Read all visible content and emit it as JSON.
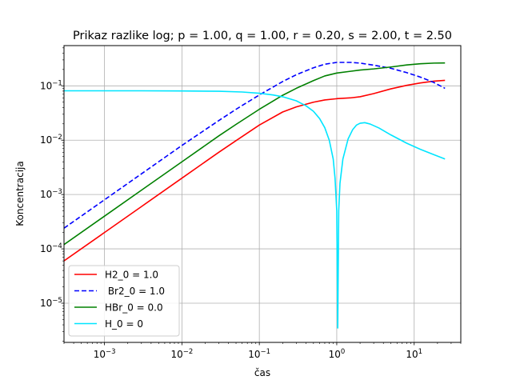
{
  "chart_data": {
    "type": "line",
    "title": "Prikaz razlike log; p = 1.00, q = 1.00, r = 0.20, s = 2.00, t = 2.50",
    "xlabel": "čas",
    "ylabel": "Koncentracija",
    "xscale": "log",
    "yscale": "log",
    "xlim": [
      0.0003,
      40
    ],
    "ylim": [
      1.9e-06,
      0.55
    ],
    "grid": true,
    "legend_position": "lower-left",
    "x_ticks": [
      {
        "value": 0.001,
        "base": "10",
        "exp": "−3"
      },
      {
        "value": 0.01,
        "base": "10",
        "exp": "−2"
      },
      {
        "value": 0.1,
        "base": "10",
        "exp": "−1"
      },
      {
        "value": 1,
        "base": "10",
        "exp": "0"
      },
      {
        "value": 10,
        "base": "10",
        "exp": "1"
      }
    ],
    "y_ticks": [
      {
        "value": 1e-05,
        "base": "10",
        "exp": "−5"
      },
      {
        "value": 0.0001,
        "base": "10",
        "exp": "−4"
      },
      {
        "value": 0.001,
        "base": "10",
        "exp": "−3"
      },
      {
        "value": 0.01,
        "base": "10",
        "exp": "−2"
      },
      {
        "value": 0.1,
        "base": "10",
        "exp": "−1"
      }
    ],
    "series": [
      {
        "name": "H2_0 = 1.0",
        "color": "#ff0000",
        "dash": "solid",
        "points": [
          [
            0.0003,
            6e-05
          ],
          [
            0.001,
            0.0002
          ],
          [
            0.003,
            0.0006
          ],
          [
            0.01,
            0.002
          ],
          [
            0.03,
            0.006
          ],
          [
            0.05,
            0.0098
          ],
          [
            0.1,
            0.019
          ],
          [
            0.2,
            0.033
          ],
          [
            0.3,
            0.041
          ],
          [
            0.5,
            0.05
          ],
          [
            0.7,
            0.055
          ],
          [
            1,
            0.058
          ],
          [
            1.5,
            0.06
          ],
          [
            2,
            0.063
          ],
          [
            3,
            0.072
          ],
          [
            5,
            0.088
          ],
          [
            8,
            0.102
          ],
          [
            12,
            0.113
          ],
          [
            18,
            0.122
          ],
          [
            25,
            0.126
          ]
        ]
      },
      {
        "name": " Br2_0 = 1.0",
        "color": "#0000ff",
        "dash": "dashed",
        "points": [
          [
            0.0003,
            0.00024
          ],
          [
            0.001,
            0.0008
          ],
          [
            0.003,
            0.0024
          ],
          [
            0.01,
            0.008
          ],
          [
            0.03,
            0.023
          ],
          [
            0.05,
            0.037
          ],
          [
            0.1,
            0.068
          ],
          [
            0.2,
            0.12
          ],
          [
            0.3,
            0.16
          ],
          [
            0.5,
            0.215
          ],
          [
            0.7,
            0.25
          ],
          [
            1,
            0.27
          ],
          [
            1.5,
            0.27
          ],
          [
            2,
            0.262
          ],
          [
            3,
            0.24
          ],
          [
            5,
            0.21
          ],
          [
            8,
            0.175
          ],
          [
            12,
            0.145
          ],
          [
            18,
            0.115
          ],
          [
            25,
            0.09
          ]
        ]
      },
      {
        "name": "HBr_0 = 0.0",
        "color": "#008000",
        "dash": "solid",
        "points": [
          [
            0.0003,
            0.00012
          ],
          [
            0.001,
            0.0004
          ],
          [
            0.003,
            0.0012
          ],
          [
            0.01,
            0.004
          ],
          [
            0.03,
            0.012
          ],
          [
            0.05,
            0.0195
          ],
          [
            0.1,
            0.037
          ],
          [
            0.2,
            0.067
          ],
          [
            0.3,
            0.09
          ],
          [
            0.5,
            0.125
          ],
          [
            0.7,
            0.152
          ],
          [
            1,
            0.172
          ],
          [
            1.5,
            0.185
          ],
          [
            2,
            0.195
          ],
          [
            3,
            0.205
          ],
          [
            5,
            0.222
          ],
          [
            8,
            0.242
          ],
          [
            12,
            0.255
          ],
          [
            18,
            0.262
          ],
          [
            25,
            0.264
          ]
        ]
      },
      {
        "name": "H_0 = 0",
        "color": "#00e5ff",
        "dash": "solid",
        "points": [
          [
            0.0003,
            0.081
          ],
          [
            0.001,
            0.081
          ],
          [
            0.003,
            0.081
          ],
          [
            0.01,
            0.0805
          ],
          [
            0.03,
            0.0795
          ],
          [
            0.06,
            0.077
          ],
          [
            0.1,
            0.073
          ],
          [
            0.15,
            0.068
          ],
          [
            0.2,
            0.063
          ],
          [
            0.3,
            0.053
          ],
          [
            0.4,
            0.043
          ],
          [
            0.5,
            0.034
          ],
          [
            0.6,
            0.025
          ],
          [
            0.7,
            0.017
          ],
          [
            0.8,
            0.01
          ],
          [
            0.9,
            0.0045
          ],
          [
            0.95,
            0.002
          ],
          [
            1.0,
            0.0005
          ],
          [
            1.03,
            3.5e-06
          ],
          [
            1.06,
            0.0005
          ],
          [
            1.1,
            0.0016
          ],
          [
            1.2,
            0.0045
          ],
          [
            1.4,
            0.0105
          ],
          [
            1.6,
            0.0155
          ],
          [
            1.8,
            0.019
          ],
          [
            2.0,
            0.0205
          ],
          [
            2.3,
            0.021
          ],
          [
            2.7,
            0.0198
          ],
          [
            3.5,
            0.0168
          ],
          [
            5,
            0.0125
          ],
          [
            8,
            0.0088
          ],
          [
            12,
            0.0068
          ],
          [
            18,
            0.0054
          ],
          [
            25,
            0.0045
          ]
        ]
      }
    ]
  }
}
